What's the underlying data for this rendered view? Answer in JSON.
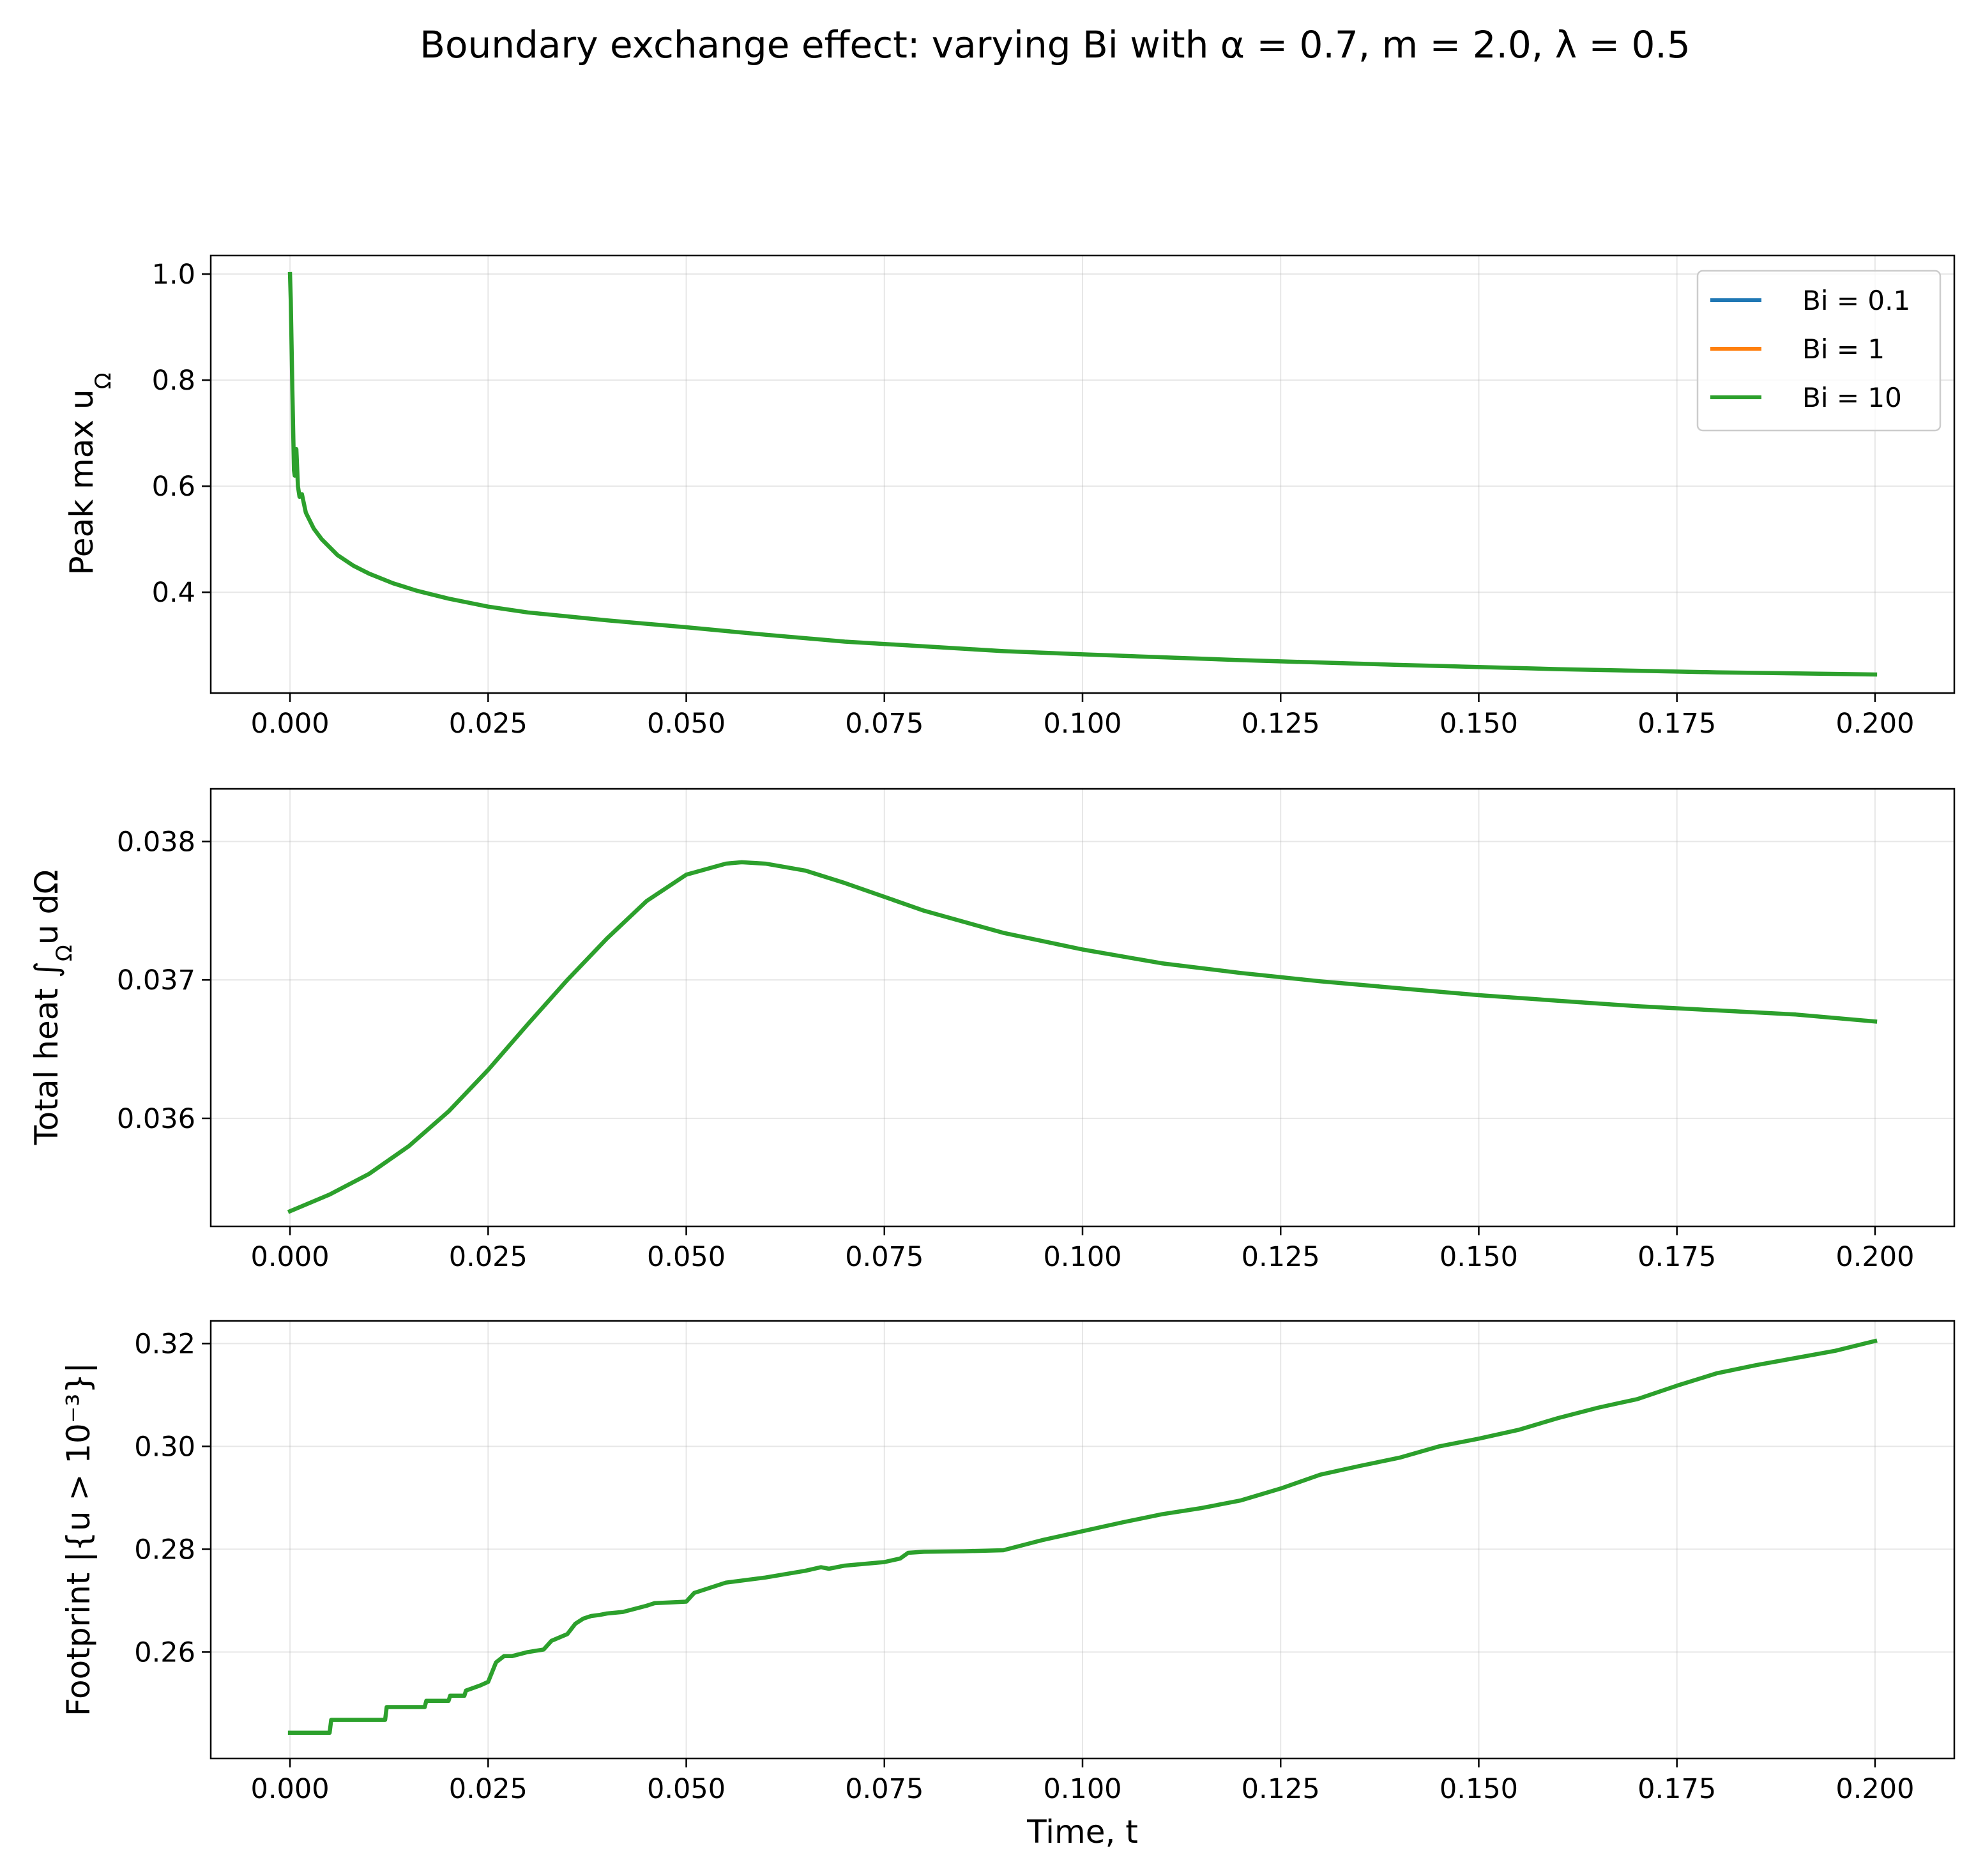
{
  "chart_data": {
    "suptitle": "Boundary exchange effect: varying Bi with α = 0.7, m = 2.0, λ = 0.5",
    "legend": {
      "placement": "top-right of first panel",
      "entries": [
        {
          "label": "Bi = 0.1",
          "color": "#1f77b4"
        },
        {
          "label": "Bi = 1",
          "color": "#ff7f0e"
        },
        {
          "label": "Bi = 10",
          "color": "#2ca02c"
        }
      ]
    },
    "panels": [
      {
        "type": "line",
        "ylabel": "Peak max u",
        "ylabel_sub": "Ω",
        "xlabel": "",
        "xlim": [
          -0.01,
          0.21
        ],
        "ylim": [
          0.21,
          1.035
        ],
        "xticks": [
          "0.000",
          "0.025",
          "0.050",
          "0.075",
          "0.100",
          "0.125",
          "0.150",
          "0.175",
          "0.200"
        ],
        "yticks": [
          "0.4",
          "0.6",
          "0.8",
          "1.0"
        ],
        "grid": true,
        "series": [
          {
            "name": "Bi = 10",
            "color": "#2ca02c",
            "x": [
              0,
              0.0001,
              0.0003,
              0.0005,
              0.0006,
              0.0008,
              0.001,
              0.0012,
              0.0015,
              0.002,
              0.003,
              0.004,
              0.006,
              0.008,
              0.01,
              0.013,
              0.016,
              0.02,
              0.025,
              0.03,
              0.04,
              0.05,
              0.06,
              0.07,
              0.08,
              0.09,
              0.1,
              0.12,
              0.14,
              0.16,
              0.18,
              0.2
            ],
            "y": [
              1.0,
              0.95,
              0.78,
              0.63,
              0.62,
              0.67,
              0.6,
              0.58,
              0.585,
              0.55,
              0.52,
              0.5,
              0.47,
              0.45,
              0.435,
              0.417,
              0.403,
              0.388,
              0.373,
              0.362,
              0.347,
              0.334,
              0.32,
              0.307,
              0.298,
              0.289,
              0.283,
              0.272,
              0.263,
              0.255,
              0.249,
              0.245
            ]
          }
        ]
      },
      {
        "type": "line",
        "ylabel": "Total heat ∫",
        "ylabel_sub": "Ω",
        "ylabel_tail": "u dΩ",
        "xlabel": "",
        "xlim": [
          -0.01,
          0.21
        ],
        "ylim": [
          0.03522,
          0.03838
        ],
        "xticks": [
          "0.000",
          "0.025",
          "0.050",
          "0.075",
          "0.100",
          "0.125",
          "0.150",
          "0.175",
          "0.200"
        ],
        "yticks": [
          "0.036",
          "0.037",
          "0.038"
        ],
        "grid": true,
        "series": [
          {
            "name": "Bi = 10",
            "color": "#2ca02c",
            "x": [
              0,
              0.005,
              0.01,
              0.015,
              0.02,
              0.025,
              0.03,
              0.035,
              0.04,
              0.045,
              0.05,
              0.055,
              0.057,
              0.06,
              0.065,
              0.07,
              0.075,
              0.08,
              0.09,
              0.1,
              0.11,
              0.12,
              0.13,
              0.14,
              0.15,
              0.16,
              0.17,
              0.18,
              0.19,
              0.2
            ],
            "y": [
              0.03533,
              0.03545,
              0.0356,
              0.0358,
              0.03605,
              0.03635,
              0.03668,
              0.037,
              0.0373,
              0.03757,
              0.03776,
              0.03784,
              0.03785,
              0.03784,
              0.03779,
              0.0377,
              0.0376,
              0.0375,
              0.03734,
              0.03722,
              0.03712,
              0.03705,
              0.03699,
              0.03694,
              0.03689,
              0.03685,
              0.03681,
              0.03678,
              0.03675,
              0.0367
            ]
          }
        ]
      },
      {
        "type": "line",
        "ylabel": "Footprint |{u > 10⁻³}|",
        "xlabel": "Time, t",
        "xlim": [
          -0.01,
          0.21
        ],
        "ylim": [
          0.2393,
          0.3244
        ],
        "xticks": [
          "0.000",
          "0.025",
          "0.050",
          "0.075",
          "0.100",
          "0.125",
          "0.150",
          "0.175",
          "0.200"
        ],
        "yticks": [
          "0.26",
          "0.28",
          "0.30",
          "0.32"
        ],
        "grid": true,
        "series": [
          {
            "name": "Bi = 10",
            "color": "#2ca02c",
            "x": [
              0,
              0.005,
              0.0052,
              0.012,
              0.0122,
              0.017,
              0.0172,
              0.02,
              0.0202,
              0.022,
              0.0222,
              0.024,
              0.025,
              0.026,
              0.027,
              0.028,
              0.03,
              0.032,
              0.033,
              0.035,
              0.036,
              0.037,
              0.038,
              0.039,
              0.04,
              0.042,
              0.045,
              0.046,
              0.05,
              0.051,
              0.052,
              0.055,
              0.06,
              0.065,
              0.067,
              0.068,
              0.07,
              0.075,
              0.077,
              0.078,
              0.08,
              0.085,
              0.09,
              0.095,
              0.1,
              0.105,
              0.11,
              0.115,
              0.12,
              0.125,
              0.13,
              0.135,
              0.14,
              0.145,
              0.15,
              0.155,
              0.16,
              0.165,
              0.17,
              0.175,
              0.18,
              0.185,
              0.19,
              0.195,
              0.2
            ],
            "y": [
              0.2443,
              0.2443,
              0.2468,
              0.2468,
              0.2493,
              0.2493,
              0.2505,
              0.2505,
              0.2515,
              0.2515,
              0.2525,
              0.2535,
              0.2542,
              0.258,
              0.2592,
              0.2592,
              0.26,
              0.2605,
              0.2622,
              0.2635,
              0.2655,
              0.2665,
              0.267,
              0.2672,
              0.2675,
              0.2678,
              0.269,
              0.2695,
              0.2698,
              0.2715,
              0.272,
              0.2735,
              0.2745,
              0.2758,
              0.2765,
              0.2762,
              0.2768,
              0.2775,
              0.2782,
              0.2793,
              0.2795,
              0.2796,
              0.2798,
              0.2818,
              0.2835,
              0.2852,
              0.2868,
              0.288,
              0.2895,
              0.2918,
              0.2945,
              0.2962,
              0.2978,
              0.3,
              0.3015,
              0.3032,
              0.3055,
              0.3075,
              0.3092,
              0.3118,
              0.3142,
              0.3158,
              0.3172,
              0.3186,
              0.3205
            ]
          }
        ]
      }
    ],
    "colors": {
      "bi_0_1": "#1f77b4",
      "bi_1": "#ff7f0e",
      "bi_10": "#2ca02c"
    }
  }
}
